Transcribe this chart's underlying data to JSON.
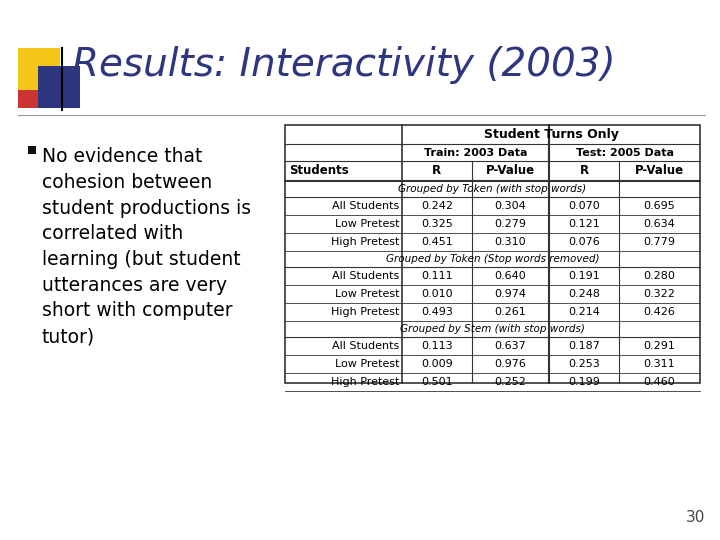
{
  "title": "Results: Interactivity (2003)",
  "title_color": "#2E3680",
  "title_fontsize": 28,
  "bullet_text": "No evidence that\ncohesion between\nstudent productions is\ncorrelated with\nlearning (but student\nutterances are very\nshort with computer\ntutor)",
  "bullet_fontsize": 13.5,
  "page_number": "30",
  "table_groups": [
    {
      "group_label": "Grouped by Token (with stop words)",
      "rows": [
        [
          "All Students",
          "0.242",
          "0.304",
          "0.070",
          "0.695"
        ],
        [
          "Low Pretest",
          "0.325",
          "0.279",
          "0.121",
          "0.634"
        ],
        [
          "High Pretest",
          "0.451",
          "0.310",
          "0.076",
          "0.779"
        ]
      ]
    },
    {
      "group_label": "Grouped by Token (Stop words removed)",
      "rows": [
        [
          "All Students",
          "0.111",
          "0.640",
          "0.191",
          "0.280"
        ],
        [
          "Low Pretest",
          "0.010",
          "0.974",
          "0.248",
          "0.322"
        ],
        [
          "High Pretest",
          "0.493",
          "0.261",
          "0.214",
          "0.426"
        ]
      ]
    },
    {
      "group_label": "Grouped by Stem (with stop words)",
      "rows": [
        [
          "All Students",
          "0.113",
          "0.637",
          "0.187",
          "0.291"
        ],
        [
          "Low Pretest",
          "0.009",
          "0.976",
          "0.253",
          "0.311"
        ],
        [
          "High Pretest",
          "0.501",
          "0.252",
          "0.199",
          "0.460"
        ]
      ]
    }
  ],
  "background_color": "#FFFFFF",
  "dec_yellow": "#F5C518",
  "dec_blue": "#2E3680",
  "dec_red": "#CC3333",
  "table_font_size": 8.0
}
